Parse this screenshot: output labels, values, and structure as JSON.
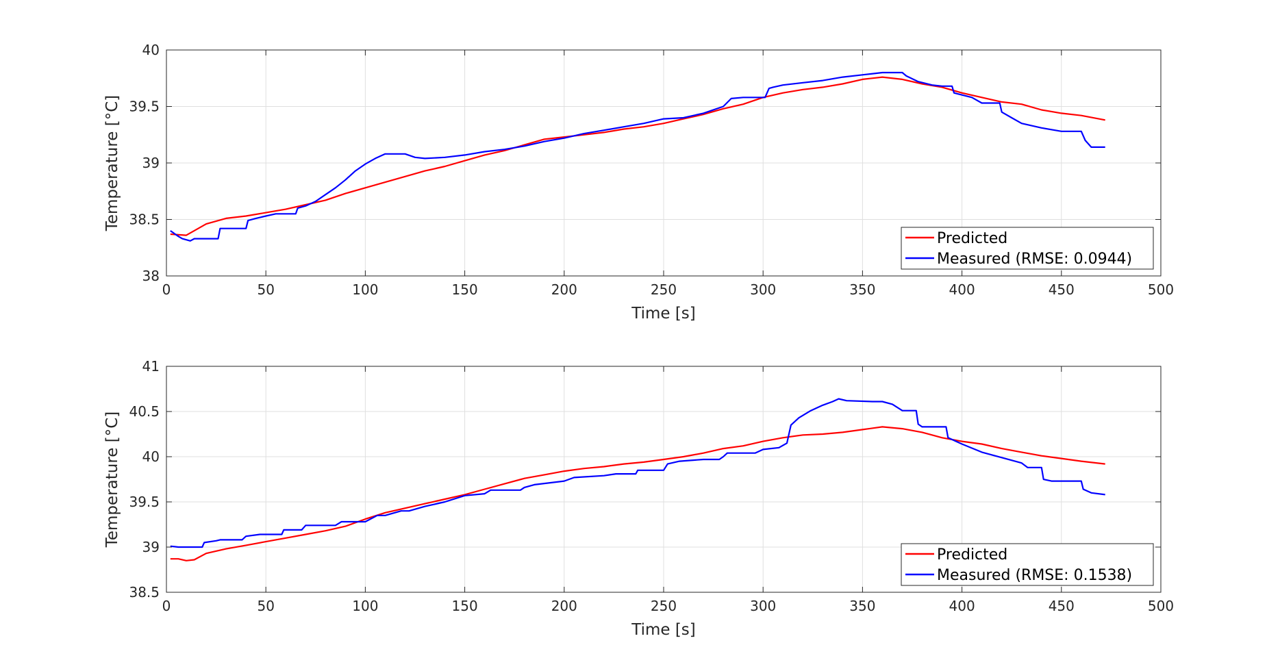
{
  "chart_data": [
    {
      "type": "line",
      "xlabel": "Time [s]",
      "ylabel": "Temperature [°C]",
      "xlim": [
        0,
        500
      ],
      "ylim": [
        38,
        40
      ],
      "xticks": [
        0,
        50,
        100,
        150,
        200,
        250,
        300,
        350,
        400,
        450,
        500
      ],
      "yticks": [
        38,
        38.5,
        39,
        39.5,
        40
      ],
      "xtick_labels": [
        "0",
        "50",
        "100",
        "150",
        "200",
        "250",
        "300",
        "350",
        "400",
        "450",
        "500"
      ],
      "ytick_labels": [
        "38",
        "38.5",
        "39",
        "39.5",
        "40"
      ],
      "grid": true,
      "legend_position": "bottom-right",
      "series": [
        {
          "name": "Predicted",
          "color": "#ff0000",
          "x": [
            2,
            10,
            20,
            30,
            40,
            50,
            60,
            70,
            80,
            90,
            100,
            110,
            120,
            130,
            140,
            150,
            160,
            170,
            180,
            190,
            200,
            210,
            220,
            230,
            240,
            250,
            260,
            270,
            280,
            290,
            300,
            310,
            320,
            330,
            340,
            350,
            360,
            370,
            380,
            390,
            400,
            410,
            420,
            430,
            440,
            450,
            460,
            472
          ],
          "y": [
            38.37,
            38.36,
            38.46,
            38.51,
            38.53,
            38.56,
            38.59,
            38.63,
            38.67,
            38.73,
            38.78,
            38.83,
            38.88,
            38.93,
            38.97,
            39.02,
            39.07,
            39.11,
            39.16,
            39.21,
            39.23,
            39.25,
            39.27,
            39.3,
            39.32,
            39.35,
            39.39,
            39.43,
            39.48,
            39.52,
            39.58,
            39.62,
            39.65,
            39.67,
            39.7,
            39.74,
            39.76,
            39.74,
            39.7,
            39.67,
            39.62,
            39.58,
            39.54,
            39.52,
            39.47,
            39.44,
            39.42,
            39.38
          ]
        },
        {
          "name": "Measured (RMSE: 0.0944)",
          "color": "#0000ff",
          "x": [
            2,
            6,
            8,
            10,
            12,
            14,
            20,
            26,
            27,
            30,
            40,
            41,
            45,
            50,
            55,
            60,
            65,
            66,
            70,
            75,
            80,
            85,
            90,
            95,
            100,
            105,
            110,
            115,
            120,
            125,
            130,
            140,
            150,
            160,
            170,
            180,
            190,
            200,
            210,
            220,
            230,
            240,
            250,
            260,
            270,
            280,
            284,
            290,
            300,
            301,
            303,
            305,
            310,
            320,
            330,
            340,
            350,
            360,
            370,
            372,
            378,
            385,
            390,
            395,
            396,
            405,
            410,
            415,
            419,
            420,
            425,
            430,
            440,
            450,
            460,
            462,
            465,
            472
          ],
          "y": [
            38.4,
            38.35,
            38.33,
            38.32,
            38.31,
            38.33,
            38.33,
            38.33,
            38.42,
            38.42,
            38.42,
            38.49,
            38.51,
            38.53,
            38.55,
            38.55,
            38.55,
            38.6,
            38.62,
            38.66,
            38.72,
            38.78,
            38.85,
            38.93,
            38.99,
            39.04,
            39.08,
            39.08,
            39.08,
            39.05,
            39.04,
            39.05,
            39.07,
            39.1,
            39.12,
            39.15,
            39.19,
            39.22,
            39.26,
            39.29,
            39.32,
            39.35,
            39.39,
            39.4,
            39.44,
            39.5,
            39.57,
            39.58,
            39.58,
            39.58,
            39.66,
            39.67,
            39.69,
            39.71,
            39.73,
            39.76,
            39.78,
            39.8,
            39.8,
            39.77,
            39.72,
            39.69,
            39.68,
            39.68,
            39.62,
            39.58,
            39.53,
            39.53,
            39.53,
            39.45,
            39.4,
            39.35,
            39.31,
            39.28,
            39.28,
            39.2,
            39.14,
            39.14
          ]
        }
      ]
    },
    {
      "type": "line",
      "xlabel": "Time [s]",
      "ylabel": "Temperature [°C]",
      "xlim": [
        0,
        500
      ],
      "ylim": [
        38.5,
        41
      ],
      "xticks": [
        0,
        50,
        100,
        150,
        200,
        250,
        300,
        350,
        400,
        450,
        500
      ],
      "yticks": [
        38.5,
        39,
        39.5,
        40,
        40.5,
        41
      ],
      "xtick_labels": [
        "0",
        "50",
        "100",
        "150",
        "200",
        "250",
        "300",
        "350",
        "400",
        "450",
        "500"
      ],
      "ytick_labels": [
        "38.5",
        "39",
        "39.5",
        "40",
        "40.5",
        "41"
      ],
      "grid": true,
      "legend_position": "bottom-right",
      "series": [
        {
          "name": "Predicted",
          "color": "#ff0000",
          "x": [
            2,
            6,
            10,
            14,
            20,
            30,
            40,
            50,
            60,
            70,
            80,
            90,
            100,
            110,
            120,
            130,
            140,
            150,
            160,
            170,
            180,
            190,
            200,
            210,
            220,
            230,
            240,
            250,
            260,
            270,
            280,
            290,
            300,
            310,
            320,
            330,
            340,
            350,
            360,
            370,
            380,
            390,
            400,
            410,
            420,
            430,
            440,
            450,
            460,
            472
          ],
          "y": [
            38.87,
            38.87,
            38.85,
            38.86,
            38.93,
            38.98,
            39.02,
            39.06,
            39.1,
            39.14,
            39.18,
            39.23,
            39.31,
            39.38,
            39.43,
            39.48,
            39.53,
            39.58,
            39.64,
            39.7,
            39.76,
            39.8,
            39.84,
            39.87,
            39.89,
            39.92,
            39.94,
            39.97,
            40.0,
            40.04,
            40.09,
            40.12,
            40.17,
            40.21,
            40.24,
            40.25,
            40.27,
            40.3,
            40.33,
            40.31,
            40.27,
            40.21,
            40.17,
            40.14,
            40.09,
            40.05,
            40.01,
            39.98,
            39.95,
            39.92
          ]
        },
        {
          "name": "Measured (RMSE: 0.1538)",
          "color": "#0000ff",
          "x": [
            2,
            6,
            18,
            19,
            25,
            27,
            38,
            40,
            47,
            50,
            58,
            59,
            68,
            70,
            85,
            88,
            100,
            106,
            110,
            118,
            122,
            130,
            140,
            150,
            160,
            163,
            178,
            180,
            185,
            200,
            205,
            220,
            226,
            236,
            237,
            250,
            252,
            258,
            270,
            275,
            278,
            280,
            282,
            296,
            300,
            308,
            312,
            314,
            318,
            324,
            330,
            335,
            338,
            342,
            355,
            360,
            365,
            370,
            375,
            377,
            378,
            380,
            385,
            392,
            393,
            400,
            410,
            420,
            430,
            433,
            440,
            441,
            445,
            449,
            450,
            460,
            461,
            465,
            472
          ],
          "y": [
            39.01,
            39.0,
            39.0,
            39.05,
            39.07,
            39.08,
            39.08,
            39.12,
            39.14,
            39.14,
            39.14,
            39.19,
            39.19,
            39.24,
            39.24,
            39.28,
            39.28,
            39.35,
            39.35,
            39.4,
            39.4,
            39.45,
            39.5,
            39.57,
            39.59,
            39.63,
            39.63,
            39.66,
            39.69,
            39.73,
            39.77,
            39.79,
            39.81,
            39.81,
            39.85,
            39.85,
            39.92,
            39.95,
            39.97,
            39.97,
            39.97,
            40.0,
            40.04,
            40.04,
            40.08,
            40.1,
            40.15,
            40.35,
            40.43,
            40.51,
            40.57,
            40.61,
            40.64,
            40.62,
            40.61,
            40.61,
            40.58,
            40.51,
            40.51,
            40.51,
            40.36,
            40.33,
            40.33,
            40.33,
            40.21,
            40.14,
            40.05,
            39.99,
            39.93,
            39.88,
            39.88,
            39.75,
            39.73,
            39.73,
            39.73,
            39.73,
            39.64,
            39.6,
            39.58
          ]
        }
      ]
    }
  ]
}
